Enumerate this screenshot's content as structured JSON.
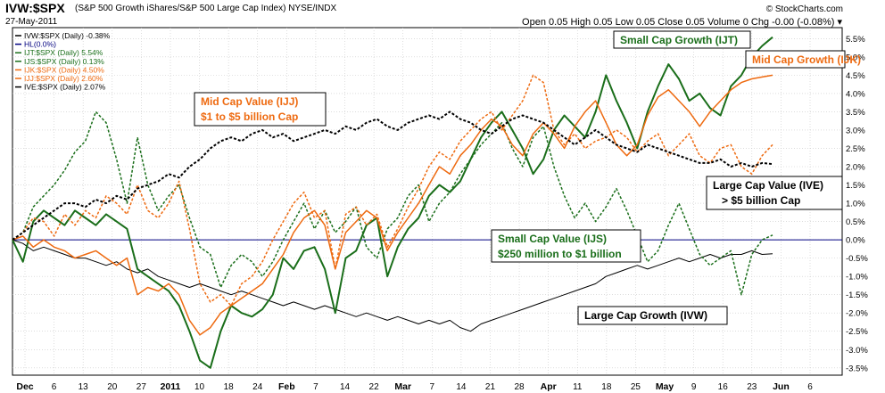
{
  "header": {
    "title": "IVW:$SPX",
    "subtitle": "(S&P 500 Growth iShares/S&P 500 Large Cap Index) NYSE/INDX",
    "date": "27-May-2011",
    "brand": "© StockCharts.com",
    "ohlc": "Open 0.05  High 0.05  Low 0.05  Close 0.05  Volume 0  Chg -0.00 (-0.08%) ▾"
  },
  "legend": [
    {
      "text": "IVW:$SPX (Daily) -0.38%",
      "color": "#000000"
    },
    {
      "text": "HL(0.0%)",
      "color": "#000080"
    },
    {
      "text": "IJT:$SPX (Daily) 5.54%",
      "color": "#1a6e1a"
    },
    {
      "text": "IJS:$SPX (Daily) 0.13%",
      "color": "#1a6e1a"
    },
    {
      "text": "IJK:$SPX (Daily) 4.50%",
      "color": "#ee6a10"
    },
    {
      "text": "IJJ:$SPX (Daily) 2.60%",
      "color": "#ee6a10"
    },
    {
      "text": "IVE:$SPX (Daily) 2.07%",
      "color": "#000000"
    }
  ],
  "annotations": [
    {
      "lines": [
        "Small Cap Growth (IJT)"
      ],
      "color": "#1a6e1a"
    },
    {
      "lines": [
        "Mid Cap Growth (IJK)"
      ],
      "color": "#ee6a10"
    },
    {
      "lines": [
        "Mid Cap Value (IJJ)",
        "$1 to $5 billion Cap"
      ],
      "color": "#ee6a10"
    },
    {
      "lines": [
        "Large Cap Value (IVE)",
        "   > $5 billion Cap"
      ],
      "color": "#000000"
    },
    {
      "lines": [
        "Small Cap Value (IJS)",
        "$250 million to $1 billion"
      ],
      "color": "#1a6e1a"
    },
    {
      "lines": [
        "Large Cap Growth (IVW)"
      ],
      "color": "#000000"
    }
  ],
  "chart_data": {
    "type": "line",
    "x_ticks": [
      "Dec",
      "6",
      "13",
      "20",
      "27",
      "2011",
      "10",
      "18",
      "24",
      "Feb",
      "7",
      "14",
      "22",
      "Mar",
      "7",
      "14",
      "21",
      "28",
      "Apr",
      "11",
      "18",
      "25",
      "May",
      "9",
      "16",
      "23",
      "Jun",
      "6"
    ],
    "bold_ticks": [
      "Dec",
      "2011",
      "Feb",
      "Mar",
      "Apr",
      "May",
      "Jun"
    ],
    "y_ticks": [
      "5.5%",
      "5.0%",
      "4.5%",
      "4.0%",
      "3.5%",
      "3.0%",
      "2.5%",
      "2.0%",
      "1.5%",
      "1.0%",
      "0.5%",
      "0.0%",
      "-0.5%",
      "-1.0%",
      "-1.5%",
      "-2.0%",
      "-2.5%",
      "-3.0%",
      "-3.5%"
    ],
    "ylim": [
      -3.7,
      5.8
    ],
    "grid": true,
    "horizontal_line": 0.0,
    "series": [
      {
        "name": "IVW:$SPX (Daily)",
        "color": "#000000",
        "style": "solid",
        "width": 1,
        "values": [
          0.0,
          -0.1,
          -0.3,
          -0.2,
          -0.3,
          -0.4,
          -0.5,
          -0.5,
          -0.6,
          -0.7,
          -0.6,
          -0.8,
          -0.9,
          -0.8,
          -1.0,
          -1.1,
          -1.2,
          -1.3,
          -1.2,
          -1.3,
          -1.4,
          -1.5,
          -1.4,
          -1.5,
          -1.6,
          -1.7,
          -1.8,
          -1.7,
          -1.8,
          -1.9,
          -1.8,
          -1.9,
          -2.0,
          -2.1,
          -2.0,
          -2.1,
          -2.2,
          -2.1,
          -2.2,
          -2.3,
          -2.2,
          -2.3,
          -2.2,
          -2.4,
          -2.5,
          -2.3,
          -2.2,
          -2.1,
          -2.0,
          -1.9,
          -1.8,
          -1.7,
          -1.6,
          -1.5,
          -1.4,
          -1.3,
          -1.2,
          -1.0,
          -0.9,
          -0.8,
          -0.7,
          -0.8,
          -0.7,
          -0.6,
          -0.5,
          -0.6,
          -0.5,
          -0.4,
          -0.5,
          -0.4,
          -0.4,
          -0.3,
          -0.4,
          -0.38
        ]
      },
      {
        "name": "IJT:$SPX (Daily)",
        "color": "#1a6e1a",
        "style": "solid",
        "width": 2,
        "values": [
          0.0,
          -0.6,
          0.5,
          0.8,
          0.6,
          0.4,
          0.8,
          0.6,
          0.4,
          0.7,
          0.5,
          0.3,
          -0.8,
          -1.0,
          -1.2,
          -1.4,
          -1.8,
          -2.5,
          -3.3,
          -3.5,
          -2.5,
          -1.8,
          -2.0,
          -2.1,
          -1.9,
          -1.5,
          -0.5,
          -0.8,
          -0.3,
          -0.2,
          -0.8,
          -2.0,
          -0.5,
          -0.3,
          0.4,
          0.6,
          -1.0,
          -0.2,
          0.3,
          0.6,
          1.2,
          1.5,
          1.3,
          1.6,
          2.2,
          2.8,
          3.2,
          3.5,
          3.0,
          2.5,
          1.8,
          2.2,
          3.0,
          3.4,
          3.1,
          2.8,
          3.5,
          4.5,
          3.8,
          3.2,
          2.5,
          3.5,
          4.2,
          4.8,
          4.4,
          3.8,
          4.0,
          3.6,
          3.4,
          4.2,
          4.5,
          5.0,
          5.3,
          5.54
        ]
      },
      {
        "name": "IJS:$SPX (Daily)",
        "color": "#1a6e1a",
        "style": "dashed",
        "width": 1.5,
        "values": [
          0.0,
          0.2,
          0.9,
          1.2,
          1.5,
          1.9,
          2.4,
          2.7,
          3.5,
          3.2,
          2.2,
          1.0,
          2.8,
          1.5,
          0.8,
          1.2,
          1.5,
          0.6,
          -0.2,
          -0.4,
          -1.3,
          -0.7,
          -0.4,
          -0.6,
          -1.0,
          -0.6,
          0.0,
          0.5,
          1.0,
          0.3,
          0.8,
          0.2,
          0.5,
          0.9,
          -0.2,
          -0.5,
          0.3,
          0.6,
          1.2,
          1.5,
          0.5,
          1.0,
          1.3,
          1.8,
          2.2,
          2.6,
          2.9,
          3.2,
          2.5,
          2.0,
          2.8,
          3.1,
          2.0,
          1.2,
          0.6,
          1.0,
          0.5,
          0.9,
          1.4,
          0.8,
          0.1,
          -0.6,
          -0.3,
          0.4,
          1.0,
          0.3,
          -0.4,
          -0.7,
          -0.5,
          -0.3,
          -1.5,
          -0.4,
          0.0,
          0.13
        ]
      },
      {
        "name": "IJK:$SPX (Daily)",
        "color": "#ee6a10",
        "style": "solid",
        "width": 1.5,
        "values": [
          0.0,
          0.1,
          -0.2,
          0.0,
          -0.2,
          -0.3,
          -0.5,
          -0.4,
          -0.3,
          -0.5,
          -0.7,
          -0.5,
          -1.5,
          -1.3,
          -1.4,
          -1.2,
          -1.5,
          -2.2,
          -2.6,
          -2.4,
          -2.0,
          -1.8,
          -1.6,
          -1.4,
          -1.2,
          -0.8,
          -0.4,
          0.2,
          0.6,
          0.8,
          0.4,
          -0.8,
          0.2,
          0.5,
          0.8,
          0.6,
          -0.3,
          0.2,
          0.6,
          1.0,
          1.5,
          2.0,
          1.8,
          2.3,
          2.6,
          3.0,
          3.3,
          3.1,
          2.6,
          2.3,
          2.9,
          3.2,
          2.9,
          2.5,
          3.1,
          3.5,
          3.8,
          3.2,
          2.6,
          2.3,
          2.6,
          3.4,
          3.9,
          4.1,
          3.8,
          3.5,
          3.1,
          3.5,
          3.8,
          4.1,
          4.3,
          4.4,
          4.45,
          4.5
        ]
      },
      {
        "name": "IJJ:$SPX (Daily)",
        "color": "#ee6a10",
        "style": "dashed",
        "width": 1.5,
        "values": [
          0.0,
          0.2,
          0.6,
          0.5,
          0.1,
          0.7,
          0.4,
          0.8,
          0.6,
          1.2,
          1.0,
          0.7,
          1.5,
          0.8,
          0.6,
          1.0,
          1.6,
          0.3,
          -1.2,
          -1.7,
          -1.5,
          -1.8,
          -1.2,
          -1.0,
          -0.6,
          0.0,
          0.5,
          1.0,
          1.3,
          0.6,
          0.8,
          -0.8,
          0.7,
          0.9,
          0.4,
          0.7,
          -0.2,
          0.3,
          0.9,
          1.4,
          2.0,
          2.4,
          2.2,
          2.7,
          3.0,
          3.3,
          3.5,
          3.0,
          3.4,
          3.8,
          4.5,
          4.3,
          3.0,
          2.6,
          2.9,
          2.5,
          2.7,
          2.8,
          3.0,
          2.8,
          2.4,
          2.7,
          2.9,
          2.3,
          2.6,
          2.9,
          2.3,
          2.1,
          2.5,
          2.6,
          2.0,
          1.8,
          2.3,
          2.6
        ]
      },
      {
        "name": "IVE:$SPX (Daily)",
        "color": "#000000",
        "style": "dashed",
        "width": 2,
        "values": [
          0.0,
          0.2,
          0.4,
          0.6,
          0.8,
          1.0,
          1.0,
          0.9,
          1.1,
          1.0,
          1.2,
          1.1,
          1.4,
          1.5,
          1.6,
          1.8,
          1.7,
          2.0,
          2.2,
          2.5,
          2.7,
          2.8,
          2.7,
          2.9,
          3.0,
          2.8,
          2.9,
          2.7,
          2.8,
          2.9,
          3.0,
          2.9,
          3.1,
          3.0,
          3.2,
          3.3,
          3.1,
          3.0,
          3.2,
          3.3,
          3.4,
          3.3,
          3.5,
          3.3,
          3.2,
          3.0,
          2.9,
          3.1,
          3.3,
          3.4,
          3.3,
          3.2,
          3.0,
          2.8,
          2.6,
          2.8,
          3.0,
          2.8,
          2.6,
          2.5,
          2.4,
          2.6,
          2.5,
          2.4,
          2.3,
          2.2,
          2.1,
          2.1,
          2.2,
          2.0,
          2.1,
          2.0,
          2.1,
          2.07
        ]
      }
    ]
  }
}
